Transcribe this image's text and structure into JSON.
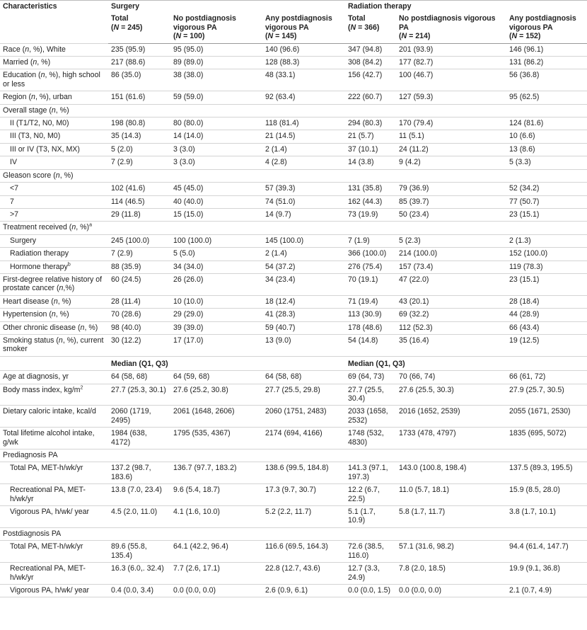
{
  "table": {
    "corner": "Characteristics",
    "groups": [
      {
        "title": "Surgery",
        "columns": [
          {
            "title": "Total",
            "n": "(N = 245)"
          },
          {
            "title": "No postdiagnosis vigorous PA",
            "n": "(N = 100)"
          },
          {
            "title": "Any postdiagnosis vigorous PA",
            "n": "(N = 145)"
          }
        ]
      },
      {
        "title": "Radiation therapy",
        "columns": [
          {
            "title": "Total",
            "n": "(N = 366)"
          },
          {
            "title": "No postdiagnosis vigorous PA",
            "n": "(N = 214)"
          },
          {
            "title": "Any postdiagnosis vigorous PA",
            "n": "(N = 152)"
          }
        ]
      }
    ],
    "body": [
      {
        "label": "Race (n, %), White",
        "cells": [
          "235 (95.9)",
          "95 (95.0)",
          "140 (96.6)",
          "347 (94.8)",
          "201 (93.9)",
          "146 (96.1)"
        ]
      },
      {
        "label": "Married (n, %)",
        "cells": [
          "217 (88.6)",
          "89 (89.0)",
          "128 (88.3)",
          "308 (84.2)",
          "177 (82.7)",
          "131 (86.2)"
        ]
      },
      {
        "label": "Education (n, %), high school or less",
        "cells": [
          "86 (35.0)",
          "38 (38.0)",
          "48 (33.1)",
          "156 (42.7)",
          "100 (46.7)",
          "56 (36.8)"
        ]
      },
      {
        "label": "Region (n, %), urban",
        "cells": [
          "151 (61.6)",
          "59 (59.0)",
          "92 (63.4)",
          "222 (60.7)",
          "127 (59.3)",
          "95 (62.5)"
        ]
      },
      {
        "label": "Overall stage (n, %)",
        "rows": [
          {
            "label": "II (T1/T2, N0, M0)",
            "cells": [
              "198 (80.8)",
              "80 (80.0)",
              "118 (81.4)",
              "294 (80.3)",
              "170 (79.4)",
              "124 (81.6)"
            ]
          },
          {
            "label": "III (T3, N0, M0)",
            "cells": [
              "35 (14.3)",
              "14 (14.0)",
              "21 (14.5)",
              "21 (5.7)",
              "11 (5.1)",
              "10 (6.6)"
            ]
          },
          {
            "label": "III or IV (T3, NX, MX)",
            "cells": [
              "5 (2.0)",
              "3 (3.0)",
              "2 (1.4)",
              "37 (10.1)",
              "24 (11.2)",
              "13 (8.6)"
            ]
          },
          {
            "label": "IV",
            "cells": [
              "7 (2.9)",
              "3 (3.0)",
              "4 (2.8)",
              "14 (3.8)",
              "9 (4.2)",
              "5 (3.3)"
            ]
          }
        ]
      },
      {
        "label": "Gleason score (n, %)",
        "rows": [
          {
            "label": "<7",
            "cells": [
              "102 (41.6)",
              "45 (45.0)",
              "57 (39.3)",
              "131 (35.8)",
              "79 (36.9)",
              "52 (34.2)"
            ]
          },
          {
            "label": "7",
            "cells": [
              "114 (46.5)",
              "40 (40.0)",
              "74 (51.0)",
              "162 (44.3)",
              "85 (39.7)",
              "77 (50.7)"
            ]
          },
          {
            "label": ">7",
            "cells": [
              "29 (11.8)",
              "15 (15.0)",
              "14 (9.7)",
              "73 (19.9)",
              "50 (23.4)",
              "23 (15.1)"
            ]
          }
        ]
      },
      {
        "label": "Treatment received (n, %)",
        "sup": "a",
        "rows": [
          {
            "label": "Surgery",
            "cells": [
              "245 (100.0)",
              "100 (100.0)",
              "145 (100.0)",
              "7 (1.9)",
              "5 (2.3)",
              "2 (1.3)"
            ]
          },
          {
            "label": "Radiation therapy",
            "cells": [
              "7 (2.9)",
              "5 (5.0)",
              "2 (1.4)",
              "366 (100.0)",
              "214 (100.0)",
              "152 (100.0)"
            ]
          },
          {
            "label": "Hormone therapy",
            "sup": "b",
            "cells": [
              "88 (35.9)",
              "34 (34.0)",
              "54 (37.2)",
              "276 (75.4)",
              "157 (73.4)",
              "119 (78.3)"
            ]
          }
        ]
      },
      {
        "label": "First-degree relative history of prostate cancer (n,%)",
        "cells": [
          "60 (24.5)",
          "26 (26.0)",
          "34 (23.4)",
          "70 (19.1)",
          "47 (22.0)",
          "23 (15.1)"
        ]
      },
      {
        "label": "Heart disease (n, %)",
        "cells": [
          "28 (11.4)",
          "10 (10.0)",
          "18 (12.4)",
          "71 (19.4)",
          "43 (20.1)",
          "28 (18.4)"
        ]
      },
      {
        "label": "Hypertension (n, %)",
        "cells": [
          "70 (28.6)",
          "29 (29.0)",
          "41 (28.3)",
          "113 (30.9)",
          "69 (32.2)",
          "44 (28.9)"
        ]
      },
      {
        "label": "Other chronic disease (n, %)",
        "cells": [
          "98 (40.0)",
          "39 (39.0)",
          "59 (40.7)",
          "178 (48.6)",
          "112 (52.3)",
          "66 (43.4)"
        ]
      },
      {
        "label": "Smoking status (n, %), current smoker",
        "cells": [
          "30 (12.2)",
          "17 (17.0)",
          "13 (9.0)",
          "54 (14.8)",
          "35 (16.4)",
          "19 (12.5)"
        ]
      },
      {
        "headings": [
          "Median (Q1, Q3)",
          "Median (Q1, Q3)"
        ]
      },
      {
        "label": "Age at diagnosis, yr",
        "cells": [
          "64 (58, 68)",
          "64 (59, 68)",
          "64 (58, 68)",
          "69 (64, 73)",
          "70 (66, 74)",
          "66 (61, 72)"
        ]
      },
      {
        "label": "Body mass index, kg/m",
        "sup": "2",
        "cells": [
          "27.7 (25.3, 30.1)",
          "27.6 (25.2, 30.8)",
          "27.7 (25.5, 29.8)",
          "27.7 (25.5, 30.4)",
          "27.6 (25.5, 30.3)",
          "27.9 (25.7, 30.5)"
        ]
      },
      {
        "label": "Dietary caloric intake, kcal/d",
        "cells": [
          "2060 (1719, 2495)",
          "2061 (1648, 2606)",
          "2060 (1751, 2483)",
          "2033 (1658, 2532)",
          "2016 (1652, 2539)",
          "2055 (1671, 2530)"
        ]
      },
      {
        "label": "Total lifetime alcohol intake, g/wk",
        "cells": [
          "1984 (638, 4172)",
          "1795 (535, 4367)",
          "2174 (694, 4166)",
          "1748 (532, 4830)",
          "1733 (478, 4797)",
          "1835 (695, 5072)"
        ]
      },
      {
        "label": "Prediagnosis PA",
        "rows": [
          {
            "label": "Total PA, MET-h/wk/yr",
            "cells": [
              "137.2 (98.7, 183.6)",
              "136.7 (97.7, 183.2)",
              "138.6 (99.5, 184.8)",
              "141.3 (97.1, 197.3)",
              "143.0 (100.8, 198.4)",
              "137.5 (89.3, 195.5)"
            ]
          },
          {
            "label": "Recreational PA, MET-h/wk/yr",
            "cells": [
              "13.8 (7.0, 23.4)",
              "9.6 (5.4, 18.7)",
              "17.3 (9.7, 30.7)",
              "12.2 (6.7, 22.5)",
              "11.0 (5.7, 18.1)",
              "15.9 (8.5, 28.0)"
            ]
          },
          {
            "label": "Vigorous PA, h/wk/ year",
            "cells": [
              "4.5 (2.0, 11.0)",
              "4.1 (1.6, 10.0)",
              "5.2 (2.2, 11.7)",
              "5.1 (1.7, 10.9)",
              "5.8 (1.7, 11.7)",
              "3.8 (1.7, 10.1)"
            ]
          }
        ]
      },
      {
        "label": "Postdiagnosis PA",
        "rows": [
          {
            "label": "Total PA, MET-h/wk/yr",
            "cells": [
              "89.6 (55.8, 135.4)",
              "64.1 (42.2, 96.4)",
              "116.6 (69.5, 164.3)",
              "72.6 (38.5, 116.0)",
              "57.1 (31.6, 98.2)",
              "94.4 (61.4, 147.7)"
            ]
          },
          {
            "label": "Recreational PA, MET-h/wk/yr",
            "cells": [
              "16.3 (6.0,. 32.4)",
              "7.7 (2.6, 17.1)",
              "22.8 (12.7, 43.6)",
              "12.7 (3.3, 24.9)",
              "7.8 (2.0, 18.5)",
              "19.9 (9.1, 36.8)"
            ]
          },
          {
            "label": "Vigorous PA, h/wk/ year",
            "cells": [
              "0.4 (0.0, 3.4)",
              "0.0 (0.0, 0.0)",
              "2.6 (0.9, 6.1)",
              "0.0 (0.0, 1.5)",
              "0.0 (0.0, 0.0)",
              "2.1 (0.7, 4.9)"
            ]
          }
        ]
      }
    ]
  }
}
